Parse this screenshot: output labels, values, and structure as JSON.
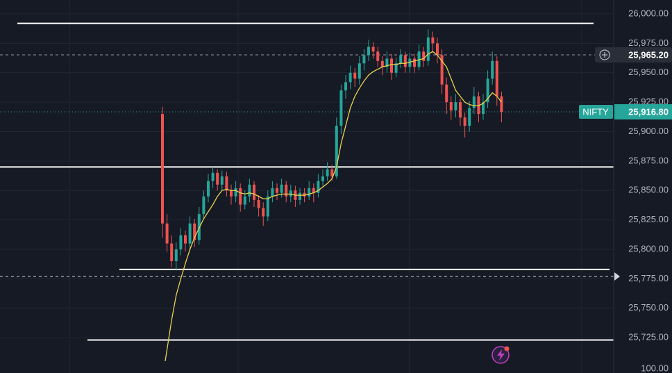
{
  "chart_data": {
    "type": "candlestick",
    "symbol": "NIFTY",
    "ylim": [
      25695,
      26011.8
    ],
    "yticks": [
      {
        "value": 26000,
        "label": "26,000.00"
      },
      {
        "value": 25975,
        "label": "25,975.00"
      },
      {
        "value": 25950,
        "label": "25,950.00"
      },
      {
        "value": 25925,
        "label": "25,925.00"
      },
      {
        "value": 25900,
        "label": "25,900.00"
      },
      {
        "value": 25875,
        "label": "25,875.00"
      },
      {
        "value": 25850,
        "label": "25,850.00"
      },
      {
        "value": 25825,
        "label": "25,825.00"
      },
      {
        "value": 25800,
        "label": "25,800.00"
      },
      {
        "value": 25775,
        "label": "25,775.00"
      },
      {
        "value": 25750,
        "label": "25,750.00"
      },
      {
        "value": 25725,
        "label": "25,725.00"
      }
    ],
    "up_color": "#26a69a",
    "down_color": "#ef5350",
    "ma_color": "#e8d44d",
    "ohlc": [
      [
        25915,
        25921,
        25810,
        25822
      ],
      [
        25822,
        25830,
        25798,
        25805
      ],
      [
        25805,
        25812,
        25785,
        25790
      ],
      [
        25790,
        25806,
        25782,
        25800
      ],
      [
        25800,
        25818,
        25795,
        25812
      ],
      [
        25812,
        25816,
        25798,
        25805
      ],
      [
        25805,
        25828,
        25800,
        25822
      ],
      [
        25822,
        25826,
        25802,
        25808
      ],
      [
        25808,
        25836,
        25804,
        25830
      ],
      [
        25830,
        25850,
        25826,
        25845
      ],
      [
        25845,
        25864,
        25840,
        25858
      ],
      [
        25858,
        25870,
        25852,
        25865
      ],
      [
        25865,
        25868,
        25850,
        25855
      ],
      [
        25855,
        25867,
        25850,
        25862
      ],
      [
        25862,
        25866,
        25845,
        25850
      ],
      [
        25850,
        25855,
        25838,
        25845
      ],
      [
        25845,
        25858,
        25840,
        25852
      ],
      [
        25852,
        25856,
        25832,
        25838
      ],
      [
        25838,
        25850,
        25834,
        25845
      ],
      [
        25845,
        25860,
        25840,
        25855
      ],
      [
        25855,
        25858,
        25836,
        25842
      ],
      [
        25842,
        25846,
        25828,
        25835
      ],
      [
        25835,
        25840,
        25820,
        25828
      ],
      [
        25828,
        25850,
        25824,
        25845
      ],
      [
        25845,
        25858,
        25840,
        25852
      ],
      [
        25852,
        25856,
        25842,
        25848
      ],
      [
        25848,
        25860,
        25844,
        25855
      ],
      [
        25855,
        25858,
        25840,
        25845
      ],
      [
        25845,
        25855,
        25840,
        25850
      ],
      [
        25850,
        25854,
        25836,
        25842
      ],
      [
        25842,
        25852,
        25838,
        25848
      ],
      [
        25848,
        25852,
        25840,
        25845
      ],
      [
        25845,
        25858,
        25842,
        25852
      ],
      [
        25852,
        25856,
        25840,
        25848
      ],
      [
        25848,
        25864,
        25844,
        25858
      ],
      [
        25858,
        25868,
        25854,
        25862
      ],
      [
        25862,
        25874,
        25858,
        25868
      ],
      [
        25868,
        25872,
        25858,
        25862
      ],
      [
        25862,
        25912,
        25860,
        25905
      ],
      [
        25905,
        25940,
        25898,
        25935
      ],
      [
        25935,
        25948,
        25928,
        25942
      ],
      [
        25942,
        25956,
        25936,
        25950
      ],
      [
        25950,
        25954,
        25938,
        25945
      ],
      [
        25945,
        25964,
        25940,
        25958
      ],
      [
        25958,
        25970,
        25952,
        25965
      ],
      [
        25965,
        25978,
        25960,
        25972
      ],
      [
        25972,
        25976,
        25962,
        25968
      ],
      [
        25968,
        25972,
        25955,
        25960
      ],
      [
        25960,
        25964,
        25948,
        25955
      ],
      [
        25955,
        25968,
        25950,
        25962
      ],
      [
        25962,
        25966,
        25944,
        25950
      ],
      [
        25950,
        25963,
        25946,
        25958
      ],
      [
        25958,
        25970,
        25954,
        25965
      ],
      [
        25965,
        25968,
        25950,
        25955
      ],
      [
        25955,
        25967,
        25950,
        25962
      ],
      [
        25962,
        25966,
        25950,
        25955
      ],
      [
        25955,
        25974,
        25952,
        25968
      ],
      [
        25968,
        25972,
        25955,
        25960
      ],
      [
        25960,
        25987,
        25956,
        25980
      ],
      [
        25980,
        25985,
        25968,
        25975
      ],
      [
        25975,
        25980,
        25958,
        25965
      ],
      [
        25965,
        25970,
        25932,
        25940
      ],
      [
        25940,
        25946,
        25915,
        25925
      ],
      [
        25925,
        25930,
        25910,
        25918
      ],
      [
        25918,
        25932,
        25912,
        25925
      ],
      [
        25925,
        25928,
        25905,
        25912
      ],
      [
        25912,
        25916,
        25895,
        25905
      ],
      [
        25905,
        25926,
        25900,
        25920
      ],
      [
        25920,
        25938,
        25915,
        25930
      ],
      [
        25930,
        25934,
        25908,
        25915
      ],
      [
        25915,
        25932,
        25910,
        25925
      ],
      [
        25925,
        25952,
        25920,
        25945
      ],
      [
        25945,
        25968,
        25940,
        25960
      ],
      [
        25960,
        25964,
        25922,
        25930
      ],
      [
        25930,
        25934,
        25908,
        25916.8
      ]
    ],
    "ma": [
      25690,
      25715,
      25740,
      25761,
      25775,
      25788,
      25800,
      25810,
      25818,
      25826,
      25832,
      25838,
      25845,
      25850,
      25851,
      25850,
      25850,
      25848,
      25847,
      25848,
      25847,
      25845,
      25843,
      25843,
      25845,
      25846,
      25847,
      25847,
      25847,
      25846,
      25846,
      25846,
      25847,
      25848,
      25850,
      25853,
      25856,
      25860,
      25870,
      25890,
      25905,
      25920,
      25930,
      25937,
      25943,
      25948,
      25951,
      25953,
      25955,
      25956,
      25957,
      25957,
      25958,
      25958,
      25959,
      25960,
      25961,
      25962,
      25966,
      25968,
      25965,
      25960,
      25955,
      25945,
      25935,
      25930,
      25925,
      25923,
      25922,
      25922,
      25924,
      25928,
      25933,
      25930,
      25925
    ],
    "drawn_lines": [
      25992,
      25870,
      25783,
      25723
    ],
    "marker_price": {
      "value": 25965.2,
      "label": "25,965.20"
    },
    "alert_price": 25777,
    "last_price": {
      "value": 25916.8,
      "label": "25,916.80"
    },
    "lower_pane_label": "100.00"
  }
}
